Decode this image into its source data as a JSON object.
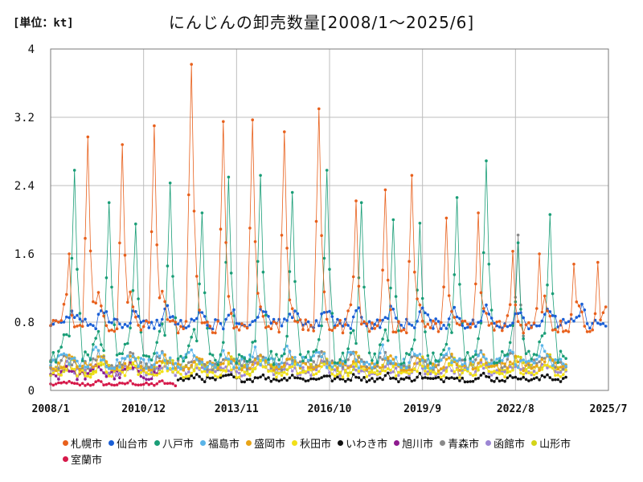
{
  "unit_label": "[単位：kt]",
  "title": "にんじんの卸売数量[2008/1～2025/6]",
  "chart_data": {
    "type": "line",
    "ylim": [
      0,
      4
    ],
    "yticks": [
      {
        "value": 0,
        "label": "0"
      },
      {
        "value": 0.8,
        "label": "0.8"
      },
      {
        "value": 1.6,
        "label": "1.6"
      },
      {
        "value": 2.4,
        "label": "2.4"
      },
      {
        "value": 3.2,
        "label": "3.2"
      },
      {
        "value": 4,
        "label": "4"
      }
    ],
    "xticks": [
      {
        "date": "2008-01",
        "label": "2008/1"
      },
      {
        "date": "2010-12",
        "label": "2010/12"
      },
      {
        "date": "2013-11",
        "label": "2013/11"
      },
      {
        "date": "2016-10",
        "label": "2016/10"
      },
      {
        "date": "2019-09",
        "label": "2019/9"
      },
      {
        "date": "2022-08",
        "label": "2022/8"
      },
      {
        "date": "2025-07",
        "label": "2025/7"
      }
    ],
    "xrange": [
      "2008-01",
      "2025-07"
    ],
    "grid": true,
    "legend_position": "bottom",
    "series": [
      {
        "name": "札幌市",
        "color": "#e8601c",
        "start": "2008-01",
        "end": "2025-06",
        "base": 0.75,
        "amp": 0.35,
        "noise": 0.08,
        "peak_month": 7,
        "peaks": [
          [
            "2008-08",
            1.6
          ],
          [
            "2009-03",
            2.97
          ],
          [
            "2010-04",
            2.88
          ],
          [
            "2011-04",
            3.1
          ],
          [
            "2012-06",
            3.82
          ],
          [
            "2013-06",
            3.15
          ],
          [
            "2014-05",
            3.17
          ],
          [
            "2015-05",
            3.03
          ],
          [
            "2016-06",
            3.3
          ],
          [
            "2017-08",
            2.22
          ],
          [
            "2018-07",
            2.35
          ],
          [
            "2019-05",
            2.52
          ],
          [
            "2020-06",
            2.02
          ],
          [
            "2021-06",
            2.08
          ],
          [
            "2022-07",
            1.63
          ],
          [
            "2023-05",
            1.6
          ],
          [
            "2024-06",
            1.48
          ],
          [
            "2025-03",
            1.5
          ]
        ]
      },
      {
        "name": "仙台市",
        "color": "#1a5fd6",
        "start": "2008-01",
        "end": "2025-06",
        "base": 0.78,
        "amp": 0.18,
        "noise": 0.06,
        "peak_month": 9,
        "peaks": []
      },
      {
        "name": "八戸市",
        "color": "#1a9e77",
        "start": "2008-01",
        "end": "2024-03",
        "base": 0.38,
        "amp": 0.35,
        "noise": 0.08,
        "peak_month": 7,
        "peaks": [
          [
            "2008-10",
            2.58
          ],
          [
            "2009-11",
            2.2
          ],
          [
            "2010-09",
            1.95
          ],
          [
            "2011-10",
            2.43
          ],
          [
            "2012-10",
            2.08
          ],
          [
            "2013-08",
            2.5
          ],
          [
            "2014-08",
            2.52
          ],
          [
            "2015-08",
            2.32
          ],
          [
            "2016-09",
            2.58
          ],
          [
            "2017-10",
            2.2
          ],
          [
            "2018-10",
            2.0
          ],
          [
            "2019-08",
            1.96
          ],
          [
            "2020-10",
            2.26
          ],
          [
            "2021-09",
            2.69
          ],
          [
            "2022-09",
            1.73
          ],
          [
            "2023-09",
            2.06
          ]
        ]
      },
      {
        "name": "福島市",
        "color": "#5ab4e8",
        "start": "2008-01",
        "end": "2024-03",
        "base": 0.32,
        "amp": 0.15,
        "noise": 0.07,
        "peak_month": 6,
        "peaks": []
      },
      {
        "name": "盛岡市",
        "color": "#e8a417",
        "start": "2008-01",
        "end": "2024-03",
        "base": 0.28,
        "amp": 0.12,
        "noise": 0.05,
        "peak_month": 8,
        "peaks": []
      },
      {
        "name": "秋田市",
        "color": "#f2e018",
        "start": "2008-01",
        "end": "2024-03",
        "base": 0.2,
        "amp": 0.1,
        "noise": 0.05,
        "peak_month": 8,
        "peaks": []
      },
      {
        "name": "いわき市",
        "color": "#111111",
        "start": "2012-01",
        "end": "2024-03",
        "base": 0.13,
        "amp": 0.05,
        "noise": 0.03,
        "peak_month": 8,
        "peaks": []
      },
      {
        "name": "旭川市",
        "color": "#8e1b8f",
        "start": "2008-01",
        "end": "2011-06",
        "base": 0.18,
        "amp": 0.12,
        "noise": 0.06,
        "peak_month": 7,
        "peaks": []
      },
      {
        "name": "青森市",
        "color": "#8a8a8a",
        "start": "2008-01",
        "end": "2024-03",
        "base": 0.3,
        "amp": 0.12,
        "noise": 0.06,
        "peak_month": 7,
        "peaks": [
          [
            "2022-09",
            1.82
          ]
        ]
      },
      {
        "name": "函館市",
        "color": "#9c86d4",
        "start": "2008-01",
        "end": "2024-03",
        "base": 0.22,
        "amp": 0.08,
        "noise": 0.05,
        "peak_month": 7,
        "peaks": []
      },
      {
        "name": "山形市",
        "color": "#d4d418",
        "start": "2008-01",
        "end": "2024-03",
        "base": 0.25,
        "amp": 0.12,
        "noise": 0.06,
        "peak_month": 9,
        "peaks": []
      },
      {
        "name": "室蘭市",
        "color": "#d6194a",
        "start": "2008-01",
        "end": "2011-12",
        "base": 0.07,
        "amp": 0.03,
        "noise": 0.02,
        "peak_month": 7,
        "peaks": []
      }
    ]
  }
}
